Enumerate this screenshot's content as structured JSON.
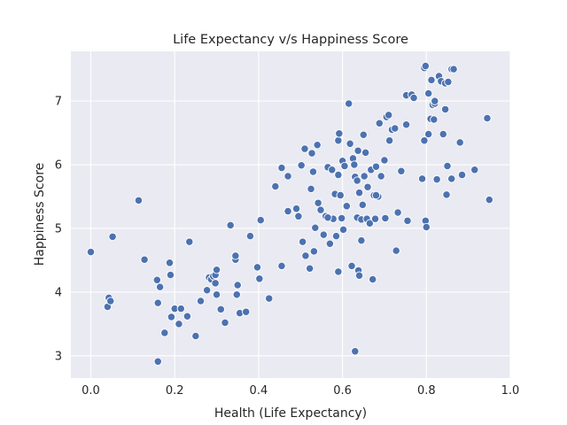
{
  "chart_data": {
    "type": "scatter",
    "title": "Life Expectancy v/s Happiness Score",
    "xlabel": "Health (Life Expectancy)",
    "ylabel": "Happiness Score",
    "xlim": [
      -0.0475,
      1.0
    ],
    "ylim": [
      2.65,
      7.78
    ],
    "xticks": [
      0.0,
      0.2,
      0.4,
      0.6,
      0.8,
      1.0
    ],
    "xtick_labels": [
      "0.0",
      "0.2",
      "0.4",
      "0.6",
      "0.8",
      "1.0"
    ],
    "yticks": [
      3,
      4,
      5,
      6,
      7
    ],
    "ytick_labels": [
      "3",
      "4",
      "5",
      "6",
      "7"
    ],
    "grid": true,
    "colors": {
      "background": "#eaeaf2",
      "point": "#4c72b0",
      "grid": "#ffffff"
    },
    "points": [
      [
        0.0,
        4.63
      ],
      [
        0.04,
        3.77
      ],
      [
        0.043,
        3.91
      ],
      [
        0.047,
        3.86
      ],
      [
        0.052,
        4.87
      ],
      [
        0.114,
        5.44
      ],
      [
        0.128,
        4.51
      ],
      [
        0.158,
        4.19
      ],
      [
        0.16,
        3.83
      ],
      [
        0.16,
        2.91
      ],
      [
        0.165,
        4.08
      ],
      [
        0.176,
        3.36
      ],
      [
        0.188,
        4.46
      ],
      [
        0.19,
        4.27
      ],
      [
        0.192,
        3.61
      ],
      [
        0.2,
        3.74
      ],
      [
        0.21,
        3.5
      ],
      [
        0.215,
        3.74
      ],
      [
        0.23,
        3.62
      ],
      [
        0.235,
        4.79
      ],
      [
        0.25,
        3.31
      ],
      [
        0.262,
        3.86
      ],
      [
        0.277,
        4.03
      ],
      [
        0.282,
        4.23
      ],
      [
        0.287,
        4.2
      ],
      [
        0.292,
        4.25
      ],
      [
        0.297,
        4.14
      ],
      [
        0.297,
        4.27
      ],
      [
        0.3,
        4.35
      ],
      [
        0.3,
        3.96
      ],
      [
        0.31,
        3.73
      ],
      [
        0.32,
        3.52
      ],
      [
        0.333,
        5.05
      ],
      [
        0.345,
        4.51
      ],
      [
        0.345,
        4.57
      ],
      [
        0.348,
        3.96
      ],
      [
        0.35,
        4.11
      ],
      [
        0.355,
        3.67
      ],
      [
        0.37,
        3.69
      ],
      [
        0.38,
        4.88
      ],
      [
        0.397,
        4.39
      ],
      [
        0.402,
        4.21
      ],
      [
        0.405,
        5.13
      ],
      [
        0.425,
        3.9
      ],
      [
        0.44,
        5.66
      ],
      [
        0.455,
        4.41
      ],
      [
        0.455,
        5.95
      ],
      [
        0.47,
        5.82
      ],
      [
        0.47,
        5.27
      ],
      [
        0.49,
        5.31
      ],
      [
        0.495,
        5.19
      ],
      [
        0.502,
        5.99
      ],
      [
        0.505,
        4.79
      ],
      [
        0.51,
        6.25
      ],
      [
        0.512,
        4.57
      ],
      [
        0.522,
        4.37
      ],
      [
        0.525,
        5.62
      ],
      [
        0.527,
        6.18
      ],
      [
        0.53,
        5.89
      ],
      [
        0.532,
        4.64
      ],
      [
        0.535,
        5.01
      ],
      [
        0.54,
        6.31
      ],
      [
        0.542,
        5.4
      ],
      [
        0.548,
        5.29
      ],
      [
        0.555,
        4.9
      ],
      [
        0.56,
        5.19
      ],
      [
        0.565,
        5.96
      ],
      [
        0.57,
        4.76
      ],
      [
        0.575,
        5.92
      ],
      [
        0.578,
        5.15
      ],
      [
        0.582,
        5.54
      ],
      [
        0.585,
        4.88
      ],
      [
        0.59,
        6.38
      ],
      [
        0.59,
        5.84
      ],
      [
        0.59,
        4.32
      ],
      [
        0.592,
        6.49
      ],
      [
        0.595,
        5.52
      ],
      [
        0.598,
        5.16
      ],
      [
        0.6,
        6.06
      ],
      [
        0.602,
        4.98
      ],
      [
        0.605,
        5.98
      ],
      [
        0.61,
        5.35
      ],
      [
        0.615,
        6.96
      ],
      [
        0.618,
        6.33
      ],
      [
        0.622,
        4.41
      ],
      [
        0.625,
        6.1
      ],
      [
        0.628,
        6.0
      ],
      [
        0.63,
        3.07
      ],
      [
        0.63,
        5.81
      ],
      [
        0.635,
        5.75
      ],
      [
        0.635,
        5.17
      ],
      [
        0.637,
        6.22
      ],
      [
        0.638,
        4.34
      ],
      [
        0.64,
        5.56
      ],
      [
        0.64,
        4.26
      ],
      [
        0.645,
        4.81
      ],
      [
        0.645,
        5.14
      ],
      [
        0.648,
        5.37
      ],
      [
        0.65,
        6.47
      ],
      [
        0.652,
        5.82
      ],
      [
        0.655,
        6.19
      ],
      [
        0.658,
        5.15
      ],
      [
        0.66,
        5.65
      ],
      [
        0.665,
        5.08
      ],
      [
        0.668,
        5.92
      ],
      [
        0.672,
        4.2
      ],
      [
        0.675,
        5.52
      ],
      [
        0.678,
        5.15
      ],
      [
        0.68,
        5.97
      ],
      [
        0.685,
        5.5
      ],
      [
        0.688,
        6.65
      ],
      [
        0.692,
        5.82
      ],
      [
        0.7,
        6.07
      ],
      [
        0.702,
        5.16
      ],
      [
        0.705,
        6.75
      ],
      [
        0.71,
        6.78
      ],
      [
        0.712,
        6.38
      ],
      [
        0.718,
        6.55
      ],
      [
        0.725,
        6.57
      ],
      [
        0.728,
        4.65
      ],
      [
        0.732,
        5.25
      ],
      [
        0.74,
        5.9
      ],
      [
        0.752,
        6.63
      ],
      [
        0.752,
        7.09
      ],
      [
        0.755,
        5.12
      ],
      [
        0.765,
        7.1
      ],
      [
        0.77,
        7.05
      ],
      [
        0.79,
        5.78
      ],
      [
        0.795,
        6.38
      ],
      [
        0.795,
        7.52
      ],
      [
        0.798,
        5.12
      ],
      [
        0.8,
        5.02
      ],
      [
        0.805,
        6.48
      ],
      [
        0.805,
        7.12
      ],
      [
        0.81,
        6.72
      ],
      [
        0.812,
        7.33
      ],
      [
        0.815,
        6.94
      ],
      [
        0.818,
        6.71
      ],
      [
        0.82,
        6.96
      ],
      [
        0.825,
        5.77
      ],
      [
        0.83,
        7.39
      ],
      [
        0.835,
        7.31
      ],
      [
        0.84,
        6.48
      ],
      [
        0.845,
        6.87
      ],
      [
        0.845,
        7.28
      ],
      [
        0.848,
        5.53
      ],
      [
        0.85,
        5.98
      ],
      [
        0.852,
        7.3
      ],
      [
        0.86,
        7.5
      ],
      [
        0.865,
        7.5
      ],
      [
        0.88,
        6.35
      ],
      [
        0.885,
        5.84
      ],
      [
        0.915,
        5.92
      ],
      [
        0.945,
        6.73
      ],
      [
        0.95,
        5.45
      ],
      [
        0.86,
        5.78
      ],
      [
        0.82,
        7.0
      ],
      [
        0.798,
        7.55
      ],
      [
        0.68,
        5.52
      ],
      [
        0.565,
        5.17
      ]
    ]
  }
}
